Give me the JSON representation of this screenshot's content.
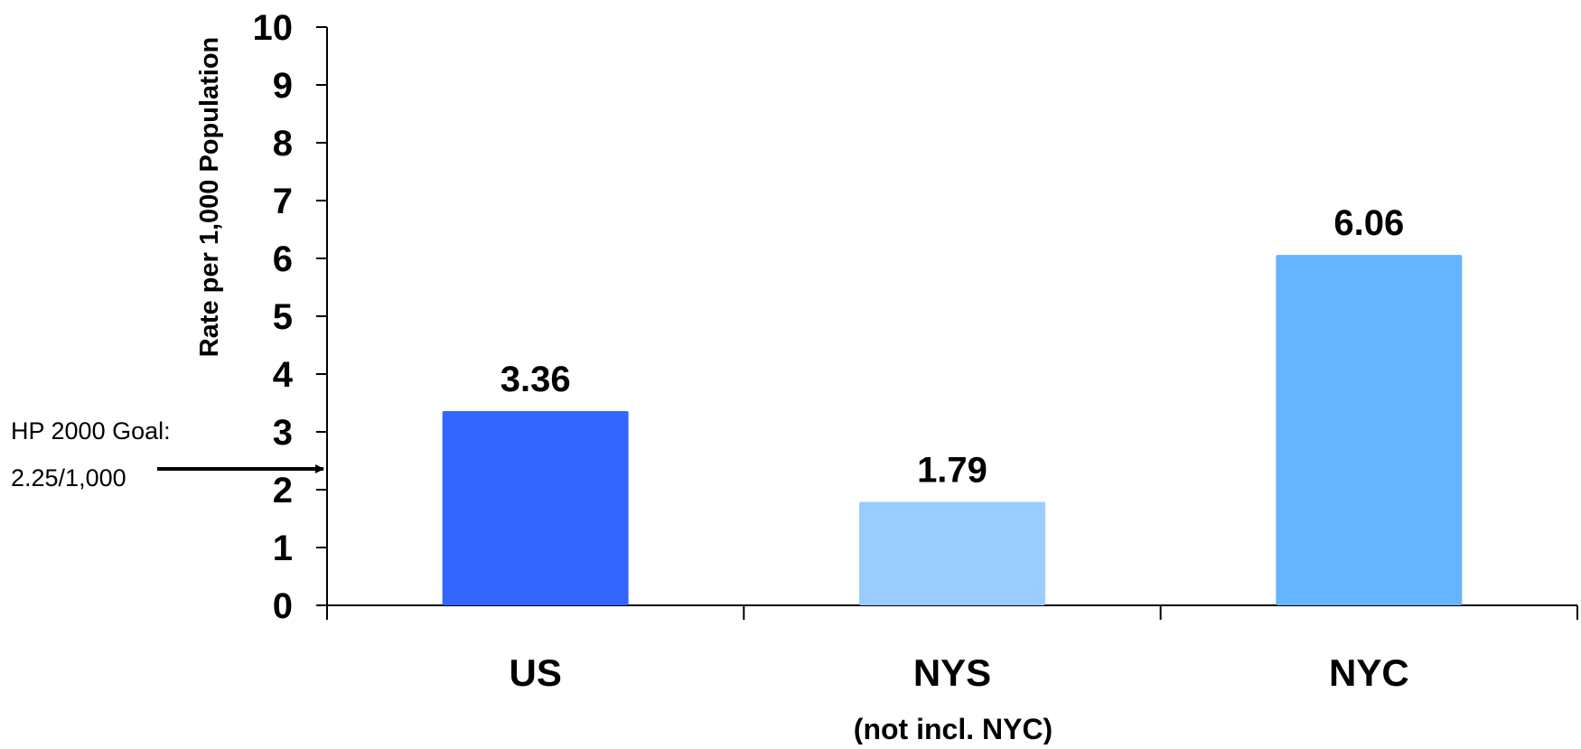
{
  "chart_data": {
    "type": "bar",
    "categories": [
      "US",
      "NYS",
      "NYC"
    ],
    "category_sublabels": [
      "",
      "(not incl. NYC)",
      ""
    ],
    "values": [
      3.36,
      1.79,
      6.06
    ],
    "value_labels": [
      "3.36",
      "1.79",
      "6.06"
    ],
    "colors": [
      "#3366ff",
      "#99ccff",
      "#66b3ff"
    ],
    "title": "",
    "xlabel": "",
    "ylabel": "Rate per 1,000 Population",
    "ylim": [
      0,
      10
    ],
    "yticks": [
      "0",
      "1",
      "2",
      "3",
      "4",
      "5",
      "6",
      "7",
      "8",
      "9",
      "10"
    ],
    "grid": false,
    "legend": "none",
    "annotation": {
      "line1": "HP 2000 Goal:",
      "line2": "2.25/1,000",
      "value": 2.25
    }
  }
}
